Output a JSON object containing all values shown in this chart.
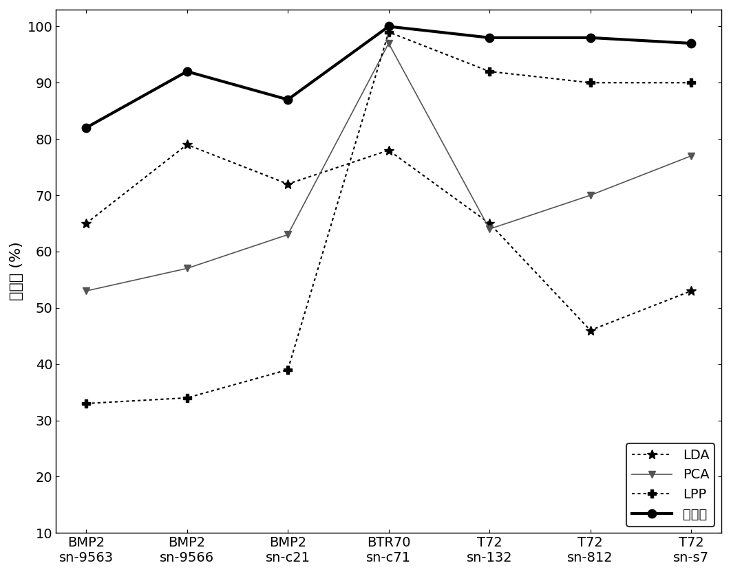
{
  "x_labels": [
    "BMP2\nsn-9563",
    "BMP2\nsn-9566",
    "BMP2\nsn-c21",
    "BTR70\nsn-c71",
    "T72\nsn-132",
    "T72\nsn-812",
    "T72\nsn-s7"
  ],
  "series": [
    {
      "name": "LDA",
      "values": [
        65,
        79,
        72,
        78,
        65,
        46,
        53
      ],
      "color": "#000000",
      "linestyle": "dotted",
      "marker": "*",
      "linewidth": 1.5,
      "markersize": 10,
      "zorder": 2
    },
    {
      "name": "PCA",
      "values": [
        53,
        57,
        63,
        97,
        64,
        70,
        77
      ],
      "color": "#555555",
      "linestyle": "solid",
      "marker": "v",
      "linewidth": 1.2,
      "markersize": 7,
      "zorder": 2
    },
    {
      "name": "LPP",
      "values": [
        33,
        34,
        39,
        99,
        92,
        90,
        90
      ],
      "color": "#000000",
      "linestyle": "dotted",
      "marker": "P",
      "linewidth": 1.5,
      "markersize": 9,
      "zorder": 3
    },
    {
      "name": "本发明",
      "values": [
        82,
        92,
        87,
        100,
        98,
        98,
        97
      ],
      "color": "#000000",
      "linestyle": "solid",
      "marker": "o",
      "linewidth": 3.0,
      "markersize": 9,
      "zorder": 4
    }
  ],
  "ylabel": "识别率 (%)",
  "ylim": [
    10,
    103
  ],
  "yticks": [
    10,
    20,
    30,
    40,
    50,
    60,
    70,
    80,
    90,
    100
  ],
  "title": "",
  "figsize": [
    10.62,
    8.35
  ],
  "dpi": 100,
  "legend_loc": "lower right",
  "font_size": 14
}
